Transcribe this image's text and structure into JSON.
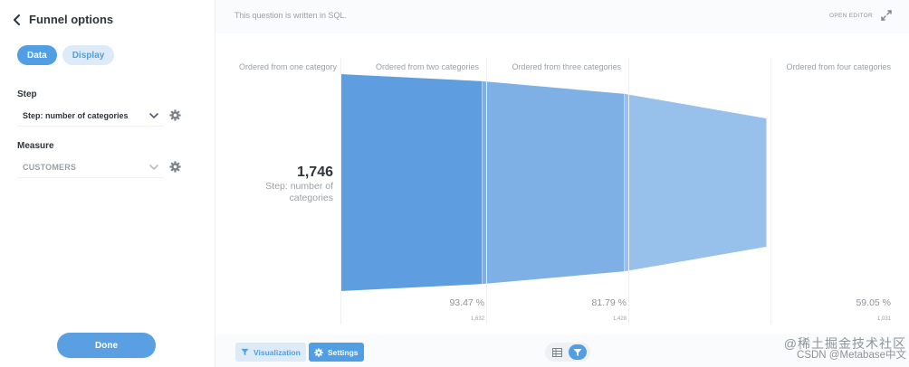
{
  "sidebar": {
    "title": "Funnel options",
    "tabs": [
      {
        "label": "Data",
        "active": true
      },
      {
        "label": "Display",
        "active": false
      }
    ],
    "step": {
      "label": "Step",
      "value": "Step: number of categories"
    },
    "measure": {
      "label": "Measure",
      "value": "CUSTOMERS"
    },
    "done_label": "Done"
  },
  "main": {
    "sql_note": "This question is written in SQL.",
    "open_editor": "OPEN EDITOR",
    "big_number": "1,746",
    "big_label": "Step: number of categories",
    "footer": {
      "visualization_label": "Visualization",
      "settings_label": "Settings"
    },
    "watermark": {
      "line1": "@稀土掘金技术社区",
      "line2": "CSDN @Metabase中文"
    }
  },
  "colors": {
    "accent": "#509ee3",
    "funnel_step1": "#5e9ee0",
    "funnel_step2": "#7eb0e5",
    "funnel_step3": "#97c0ea"
  },
  "chart_data": {
    "type": "funnel",
    "steps": [
      {
        "label": "Ordered from one category",
        "value": 1746,
        "value_label": "1,746",
        "percent": null,
        "percent_label": "",
        "count_label": ""
      },
      {
        "label": "Ordered from two categories",
        "value": 1632,
        "value_label": "1,632",
        "percent": 93.47,
        "percent_label": "93.47 %",
        "count_label": "1,632"
      },
      {
        "label": "Ordered from three categories",
        "value": 1428,
        "value_label": "1,428",
        "percent": 81.79,
        "percent_label": "81.79 %",
        "count_label": "1,428"
      },
      {
        "label": "Ordered from four categories",
        "value": 1031,
        "value_label": "1,031",
        "percent": 59.05,
        "percent_label": "59.05 %",
        "count_label": "1,031"
      }
    ]
  }
}
